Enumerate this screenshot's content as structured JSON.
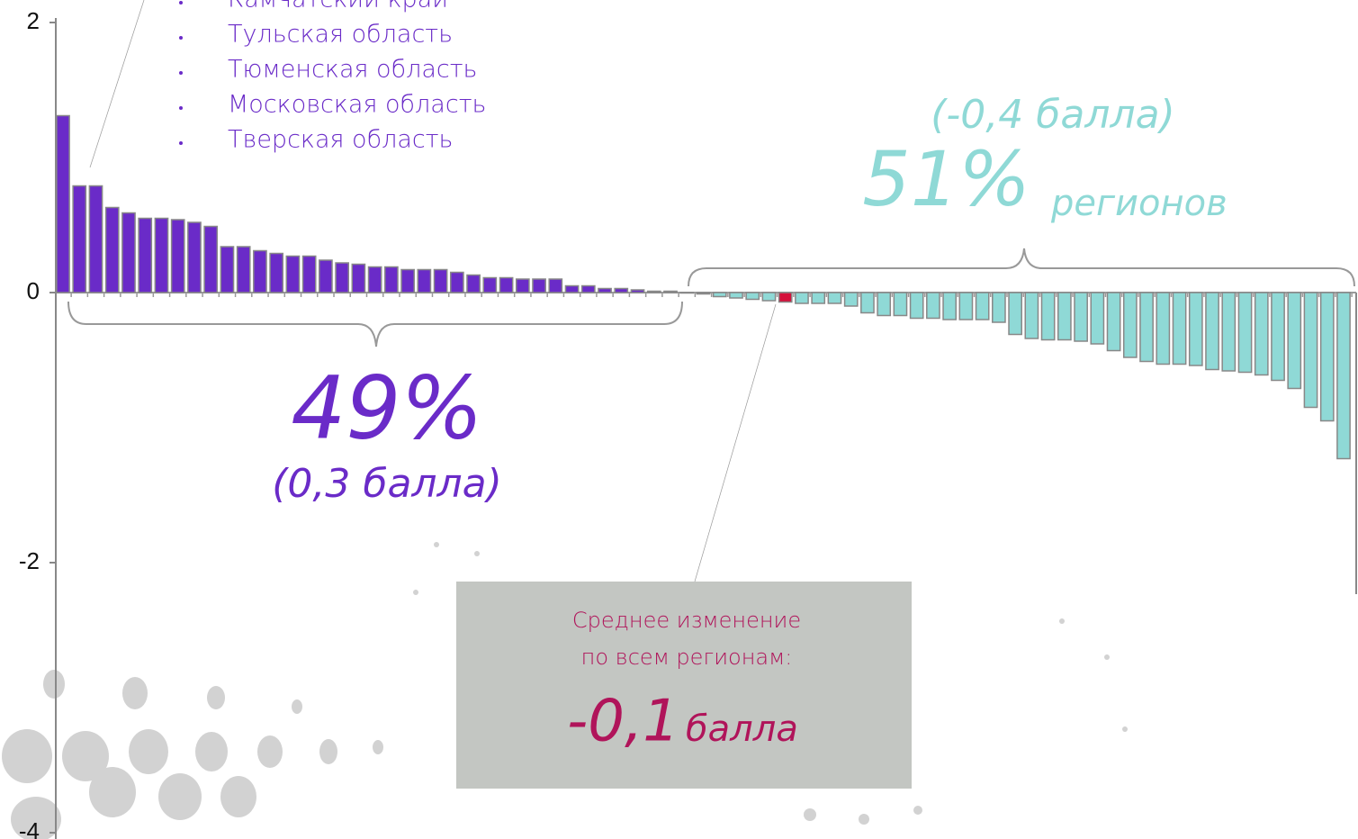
{
  "chart_data": {
    "type": "bar",
    "values": [
      1.31,
      0.79,
      0.79,
      0.63,
      0.59,
      0.55,
      0.55,
      0.54,
      0.52,
      0.49,
      0.34,
      0.34,
      0.31,
      0.29,
      0.27,
      0.27,
      0.24,
      0.22,
      0.21,
      0.19,
      0.19,
      0.17,
      0.17,
      0.17,
      0.15,
      0.13,
      0.11,
      0.11,
      0.1,
      0.1,
      0.1,
      0.05,
      0.05,
      0.03,
      0.03,
      0.02,
      0.01,
      0.01,
      0,
      -0.01,
      -0.03,
      -0.04,
      -0.05,
      -0.06,
      -0.07,
      -0.08,
      -0.08,
      -0.08,
      -0.1,
      -0.15,
      -0.17,
      -0.17,
      -0.19,
      -0.19,
      -0.2,
      -0.2,
      -0.2,
      -0.22,
      -0.31,
      -0.34,
      -0.35,
      -0.35,
      -0.36,
      -0.38,
      -0.43,
      -0.48,
      -0.51,
      -0.53,
      -0.53,
      -0.54,
      -0.57,
      -0.58,
      -0.59,
      -0.61,
      -0.65,
      -0.71,
      -0.85,
      -0.95,
      -1.23
    ],
    "positive_color": "#6a2bc8",
    "negative_color": "#8fd9d6",
    "highlight": {
      "index": 44,
      "color": "#d4103a"
    },
    "ylim": [
      -4,
      2
    ],
    "yticks": [
      -4,
      -2,
      0,
      2
    ],
    "top_regions": [
      "Камчатский край",
      "Тульская область",
      "Тюменская область",
      "Московская область",
      "Тверская область"
    ],
    "positive_share": "49%",
    "positive_mean": "(0,3 балла)",
    "negative_mean": "(-0,4 балла)",
    "negative_share": "51%",
    "negative_unit": "регионов",
    "average": {
      "line1": "Среднее изменение",
      "line2": "по всем регионам:",
      "value": "-0,1",
      "unit": "балла"
    }
  }
}
